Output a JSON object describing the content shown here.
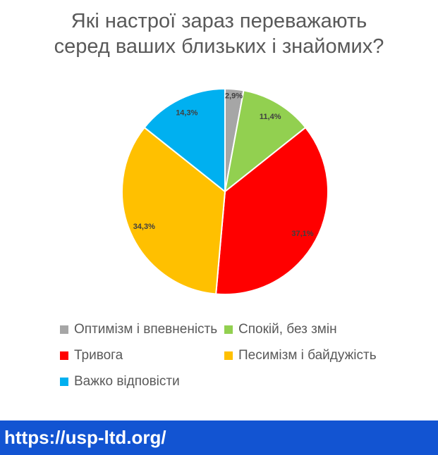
{
  "title": {
    "line1": "Які настрої зараз переважають",
    "line2": "серед ваших близьких і знайомих?"
  },
  "chart_data": {
    "type": "pie",
    "title": "Які настрої зараз переважають серед ваших близьких і знайомих?",
    "categories": [
      "Оптимізм і впевненість",
      "Спокій, без змін",
      "Тривога",
      "Песимізм і байдужість",
      "Важко відповісти"
    ],
    "values": [
      2.9,
      11.4,
      37.1,
      34.3,
      14.3
    ],
    "labels": [
      "2,9%",
      "11,4%",
      "37,1%",
      "34,3%",
      "14,3%"
    ],
    "colors": [
      "#a6a6a6",
      "#92d050",
      "#ff0000",
      "#ffc000",
      "#00b0f0"
    ],
    "start_angle_deg": 0,
    "direction": "clockwise",
    "legend_position": "bottom"
  },
  "footer": {
    "url": "https://usp-ltd.org/"
  },
  "colors": {
    "title_text": "#595959",
    "legend_text": "#595959",
    "slice_label_text": "#404040",
    "footer_bg": "#1254d2",
    "footer_text": "#ffffff"
  }
}
